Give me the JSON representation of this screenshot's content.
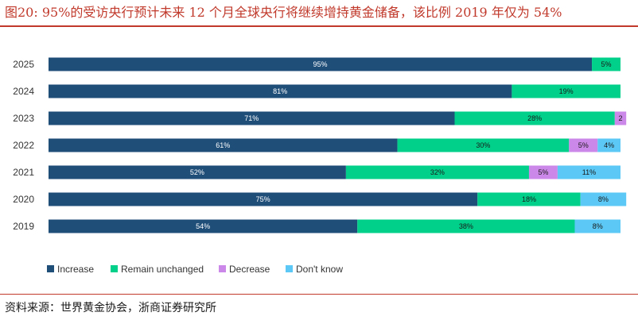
{
  "figure_title": "图20:   95%的受访央行预计未来 12 个月全球央行将继续增持黄金储备，该比例 2019 年仅为 54%",
  "source": "资料来源：世界黄金协会，浙商证券研究所",
  "colors": {
    "Increase": "#1f4e79",
    "Remain unchanged": "#00d08a",
    "Decrease": "#cc88e8",
    "Don't know": "#5bc8f5",
    "frame": "#c0392b"
  },
  "chart_data": {
    "type": "bar",
    "orientation": "horizontal",
    "stacked": true,
    "categories": [
      "2025",
      "2024",
      "2023",
      "2022",
      "2021",
      "2020",
      "2019"
    ],
    "xlim": [
      0,
      100
    ],
    "grid": false,
    "legend_position": "bottom",
    "series": [
      {
        "name": "Increase",
        "values": [
          95,
          81,
          71,
          61,
          52,
          75,
          54
        ],
        "labels": [
          "95%",
          "81%",
          "71%",
          "61%",
          "52%",
          "75%",
          "54%"
        ]
      },
      {
        "name": "Remain unchanged",
        "values": [
          5,
          19,
          28,
          30,
          32,
          18,
          38
        ],
        "labels": [
          "5%",
          "19%",
          "28%",
          "30%",
          "32%",
          "18%",
          "38%"
        ]
      },
      {
        "name": "Decrease",
        "values": [
          0,
          0,
          2,
          5,
          5,
          0,
          0
        ],
        "labels": [
          "",
          "",
          "2",
          "5%",
          "5%",
          "",
          ""
        ]
      },
      {
        "name": "Don't know",
        "values": [
          0,
          0,
          0,
          4,
          11,
          8,
          8
        ],
        "labels": [
          "",
          "",
          "",
          "4%",
          "11%",
          "8%",
          "8%"
        ]
      }
    ]
  }
}
